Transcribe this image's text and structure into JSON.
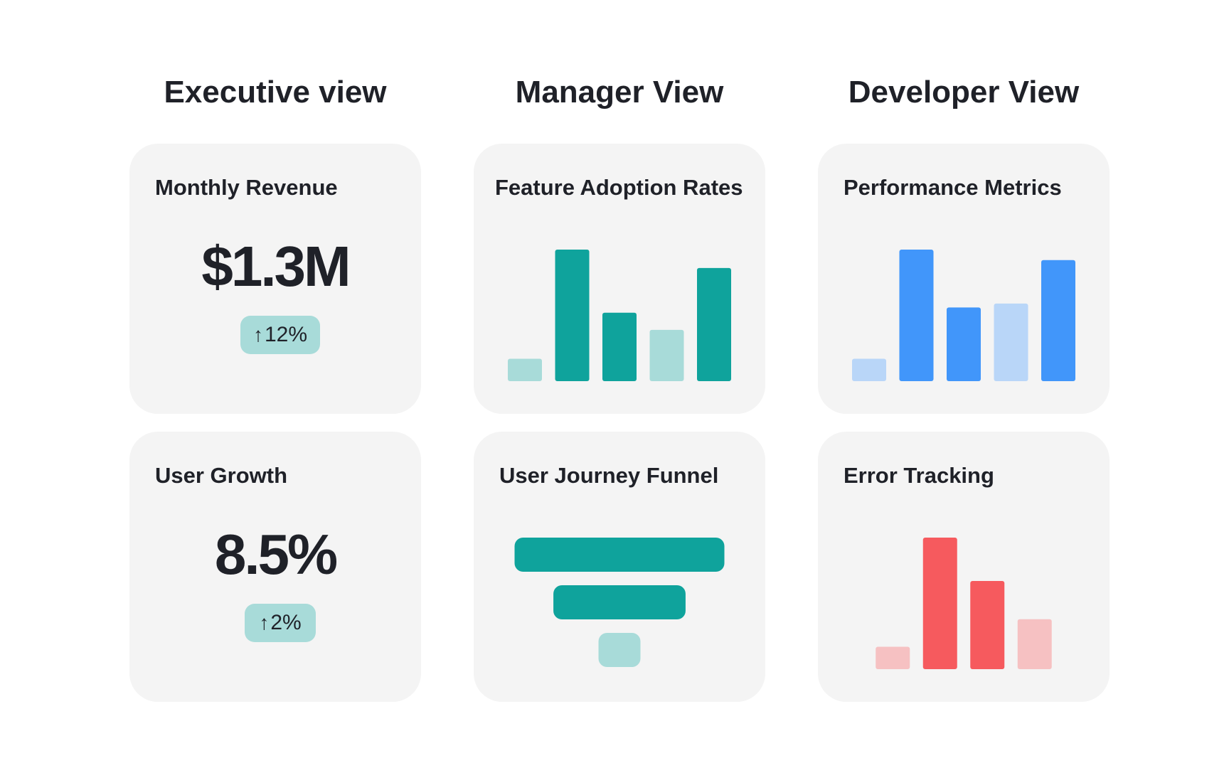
{
  "columns": {
    "executive": {
      "title": "Executive view"
    },
    "manager": {
      "title": "Manager View"
    },
    "developer": {
      "title": "Developer View"
    }
  },
  "cards": {
    "monthly_revenue": {
      "title": "Monthly Revenue",
      "value": "$1.3M",
      "change": "12%",
      "change_icon": "arrow-up-icon"
    },
    "user_growth": {
      "title": "User Growth",
      "value": "8.5%",
      "change": "2%",
      "change_icon": "arrow-up-icon"
    },
    "feature_adoption": {
      "title": "Feature Adoption Rates"
    },
    "user_journey": {
      "title": "User Journey Funnel"
    },
    "performance_metrics": {
      "title": "Performance Metrics"
    },
    "error_tracking": {
      "title": "Error Tracking"
    }
  },
  "colors": {
    "card_background": "#f4f4f4",
    "badge": "#a8dbd9",
    "teal": "#0fa39c",
    "teal_light": "#a8dbd9",
    "blue": "#4196fa",
    "blue_light": "#b9d6f8",
    "red": "#f65a5e",
    "red_light": "#f6c1c2"
  },
  "chart_data": [
    {
      "type": "bar",
      "id": "feature_adoption",
      "values": [
        0.17,
        1.0,
        0.52,
        0.39,
        0.86
      ],
      "tones": [
        "light",
        "dark",
        "dark",
        "light",
        "dark"
      ],
      "colors": {
        "dark": "#0fa39c",
        "light": "#a8dbd9"
      }
    },
    {
      "type": "bar",
      "id": "performance_metrics",
      "values": [
        0.17,
        1.0,
        0.56,
        0.59,
        0.92
      ],
      "tones": [
        "light",
        "dark",
        "dark",
        "light",
        "dark"
      ],
      "colors": {
        "dark": "#4196fa",
        "light": "#b9d6f8"
      }
    },
    {
      "type": "funnel",
      "id": "user_journey",
      "values": [
        1.0,
        0.63,
        0.2
      ],
      "tones": [
        "dark",
        "dark",
        "light"
      ],
      "colors": {
        "dark": "#0fa39c",
        "light": "#a8dbd9"
      }
    },
    {
      "type": "bar",
      "id": "error_tracking",
      "values": [
        0.17,
        1.0,
        0.67,
        0.38
      ],
      "tones": [
        "light",
        "dark",
        "dark",
        "light"
      ],
      "colors": {
        "dark": "#f65a5e",
        "light": "#f6c1c2"
      }
    }
  ]
}
